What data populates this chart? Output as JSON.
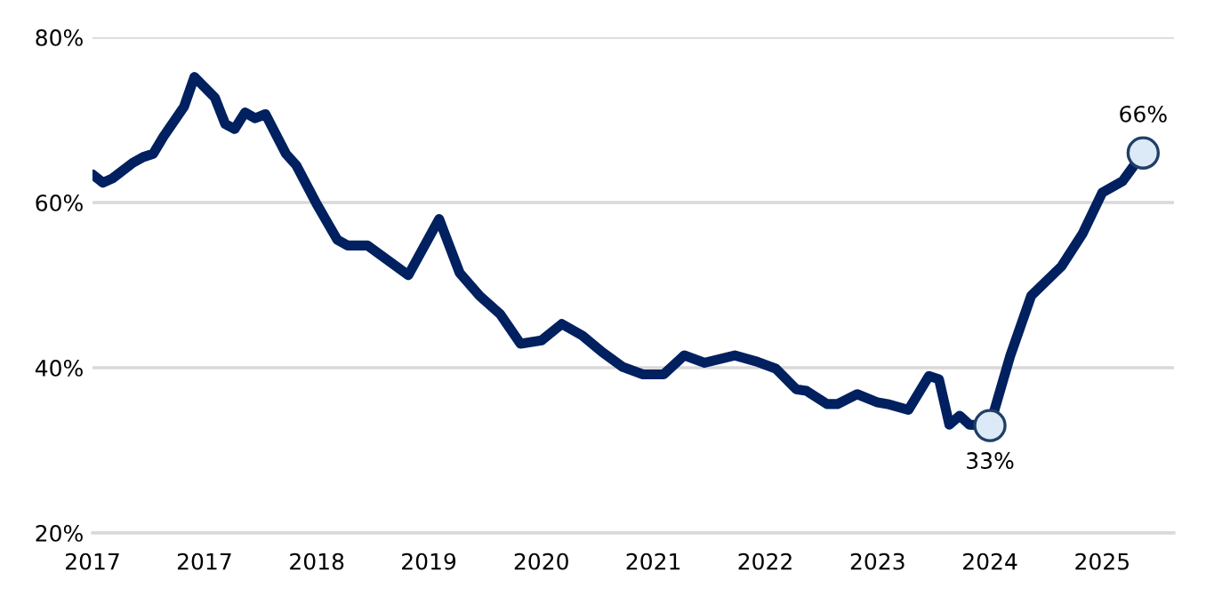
{
  "chart_data": {
    "type": "line",
    "xlim": [
      "2017-01",
      "2025-11"
    ],
    "xticks": [
      {
        "value": "2017-01",
        "label": "2017"
      },
      {
        "value": "2017-12",
        "label": "2017"
      },
      {
        "value": "2018-11",
        "label": "2018"
      },
      {
        "value": "2019-10",
        "label": "2019"
      },
      {
        "value": "2020-09",
        "label": "2020"
      },
      {
        "value": "2021-08",
        "label": "2021"
      },
      {
        "value": "2022-07",
        "label": "2022"
      },
      {
        "value": "2023-06",
        "label": "2023"
      },
      {
        "value": "2024-05",
        "label": "2024"
      },
      {
        "value": "2025-04",
        "label": "2025"
      }
    ],
    "ylim": [
      20,
      80
    ],
    "yticks": [
      {
        "value": 20,
        "label": "20%"
      },
      {
        "value": 40,
        "label": "40%"
      },
      {
        "value": 60,
        "label": "60%"
      },
      {
        "value": 80,
        "label": "80%"
      }
    ],
    "grid": "y",
    "series": [
      {
        "color": "#002060",
        "marker": "none",
        "line_style": "solid",
        "x": [
          "2017-01",
          "2017-02",
          "2017-03",
          "2017-05",
          "2017-06",
          "2017-07",
          "2017-08",
          "2017-10",
          "2017-11",
          "2018-01",
          "2018-02",
          "2018-03",
          "2018-04",
          "2018-05",
          "2018-06",
          "2018-08",
          "2018-09",
          "2018-11",
          "2019-01",
          "2019-02",
          "2019-04",
          "2019-06",
          "2019-08",
          "2019-11",
          "2020-01",
          "2020-03",
          "2020-05",
          "2020-07",
          "2020-09",
          "2020-11",
          "2021-01",
          "2021-03",
          "2021-05",
          "2021-07",
          "2021-09",
          "2021-11",
          "2022-01",
          "2022-04",
          "2022-06",
          "2022-08",
          "2022-10",
          "2022-11",
          "2023-01",
          "2023-02",
          "2023-04",
          "2023-06",
          "2023-07",
          "2023-09",
          "2023-11",
          "2023-12",
          "2024-01",
          "2024-02",
          "2024-03",
          "2024-05",
          "2024-07",
          "2024-08",
          "2024-09",
          "2024-12",
          "2025-02",
          "2025-04",
          "2025-06",
          "2025-08"
        ],
        "values": [
          63.4,
          62.4,
          62.9,
          64.8,
          65.5,
          65.9,
          68.0,
          71.6,
          75.2,
          72.7,
          69.5,
          68.9,
          70.9,
          70.2,
          70.7,
          65.9,
          64.5,
          59.8,
          55.5,
          54.8,
          54.8,
          53.0,
          51.2,
          58.0,
          51.5,
          48.7,
          46.5,
          42.9,
          43.3,
          45.3,
          43.9,
          41.9,
          40.1,
          39.2,
          39.2,
          41.5,
          40.6,
          41.5,
          40.8,
          39.9,
          37.4,
          37.2,
          35.6,
          35.6,
          36.8,
          35.8,
          35.6,
          34.9,
          39.0,
          38.6,
          33.1,
          34.2,
          33.1,
          33,
          41.5,
          45.1,
          48.7,
          52.3,
          56.2,
          61.2,
          62.6,
          66
        ]
      },
      {
        "type": "scatter",
        "color": "#dce9f7",
        "marker": "circle",
        "x": [
          "2024-05",
          "2025-08"
        ],
        "values": [
          33,
          66
        ],
        "value_labels": [
          "33%",
          "66%"
        ]
      }
    ]
  }
}
